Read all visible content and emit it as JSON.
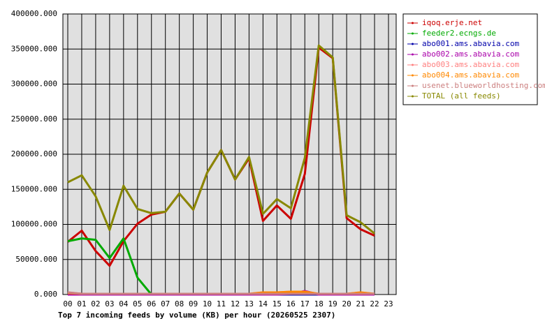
{
  "chart_data": {
    "type": "line",
    "title": "Top 7 incoming feeds by volume (KB) per hour (20260525 2307)",
    "categories": [
      "00",
      "01",
      "02",
      "03",
      "04",
      "05",
      "06",
      "07",
      "08",
      "09",
      "10",
      "11",
      "12",
      "13",
      "14",
      "15",
      "16",
      "17",
      "18",
      "19",
      "20",
      "21",
      "22",
      "23"
    ],
    "ylim": [
      0,
      400000
    ],
    "yticks": [
      {
        "value": 0,
        "label": "0.000"
      },
      {
        "value": 50000,
        "label": "50000.000"
      },
      {
        "value": 100000,
        "label": "100000.000"
      },
      {
        "value": 150000,
        "label": "150000.000"
      },
      {
        "value": 200000,
        "label": "200000.000"
      },
      {
        "value": 250000,
        "label": "250000.000"
      },
      {
        "value": 300000,
        "label": "300000.000"
      },
      {
        "value": 350000,
        "label": "350000.000"
      },
      {
        "value": 400000,
        "label": "400000.000"
      }
    ],
    "grid": true,
    "legend": "right",
    "series": [
      {
        "name": "iqoq.erje.net",
        "color": "#cc0000",
        "values": [
          75000,
          91000,
          62000,
          41000,
          76000,
          101000,
          114000,
          118000,
          144000,
          121000,
          174000,
          206000,
          164000,
          194000,
          105000,
          127000,
          108000,
          172000,
          352000,
          337000,
          109000,
          93000,
          84000,
          null
        ]
      },
      {
        "name": "feeder2.ecngs.de",
        "color": "#00aa00",
        "values": [
          76000,
          80000,
          78000,
          52000,
          80000,
          24000,
          0,
          null,
          null,
          null,
          null,
          null,
          null,
          null,
          null,
          null,
          null,
          null,
          null,
          null,
          null,
          null,
          null,
          null
        ]
      },
      {
        "name": "abo001.ams.abavia.com",
        "color": "#0000aa",
        "values": [
          0,
          0,
          0,
          0,
          0,
          0,
          0,
          0,
          0,
          0,
          0,
          0,
          0,
          0,
          0,
          0,
          0,
          0,
          0,
          0,
          0,
          0,
          0,
          null
        ]
      },
      {
        "name": "abo002.ams.abavia.com",
        "color": "#aa00aa",
        "values": [
          0,
          0,
          0,
          0,
          0,
          0,
          0,
          0,
          0,
          0,
          0,
          0,
          0,
          0,
          0,
          0,
          1000,
          5000,
          0,
          0,
          0,
          0,
          0,
          null
        ]
      },
      {
        "name": "abo003.ams.abavia.com",
        "color": "#ff8080",
        "values": [
          3000,
          1000,
          1000,
          1000,
          1000,
          1000,
          1000,
          1000,
          1000,
          1000,
          1000,
          1000,
          1000,
          1000,
          3000,
          3000,
          4000,
          4000,
          1000,
          1000,
          1000,
          3000,
          1000,
          null
        ]
      },
      {
        "name": "abo004.ams.abavia.com",
        "color": "#ff8800",
        "values": [
          2000,
          1000,
          1000,
          1000,
          1000,
          1000,
          1000,
          1000,
          1000,
          1000,
          1000,
          1000,
          1000,
          1000,
          3000,
          3000,
          4000,
          4000,
          1000,
          1000,
          1000,
          3000,
          1000,
          null
        ]
      },
      {
        "name": "usenet.blueworldhosting.com",
        "color": "#cc8080",
        "values": [
          3000,
          1000,
          1000,
          1000,
          1000,
          1000,
          1000,
          1000,
          1000,
          1000,
          1000,
          1000,
          1000,
          1000,
          1000,
          1000,
          1000,
          1000,
          1000,
          1000,
          1000,
          1000,
          1000,
          null
        ]
      },
      {
        "name": "TOTAL (all feeds)",
        "color": "#888800",
        "values": [
          160000,
          170000,
          140000,
          92000,
          155000,
          122000,
          116000,
          118000,
          144000,
          121000,
          174000,
          206000,
          164000,
          196000,
          115000,
          136000,
          123000,
          195000,
          355000,
          338000,
          113000,
          103000,
          87000,
          null
        ]
      }
    ]
  }
}
